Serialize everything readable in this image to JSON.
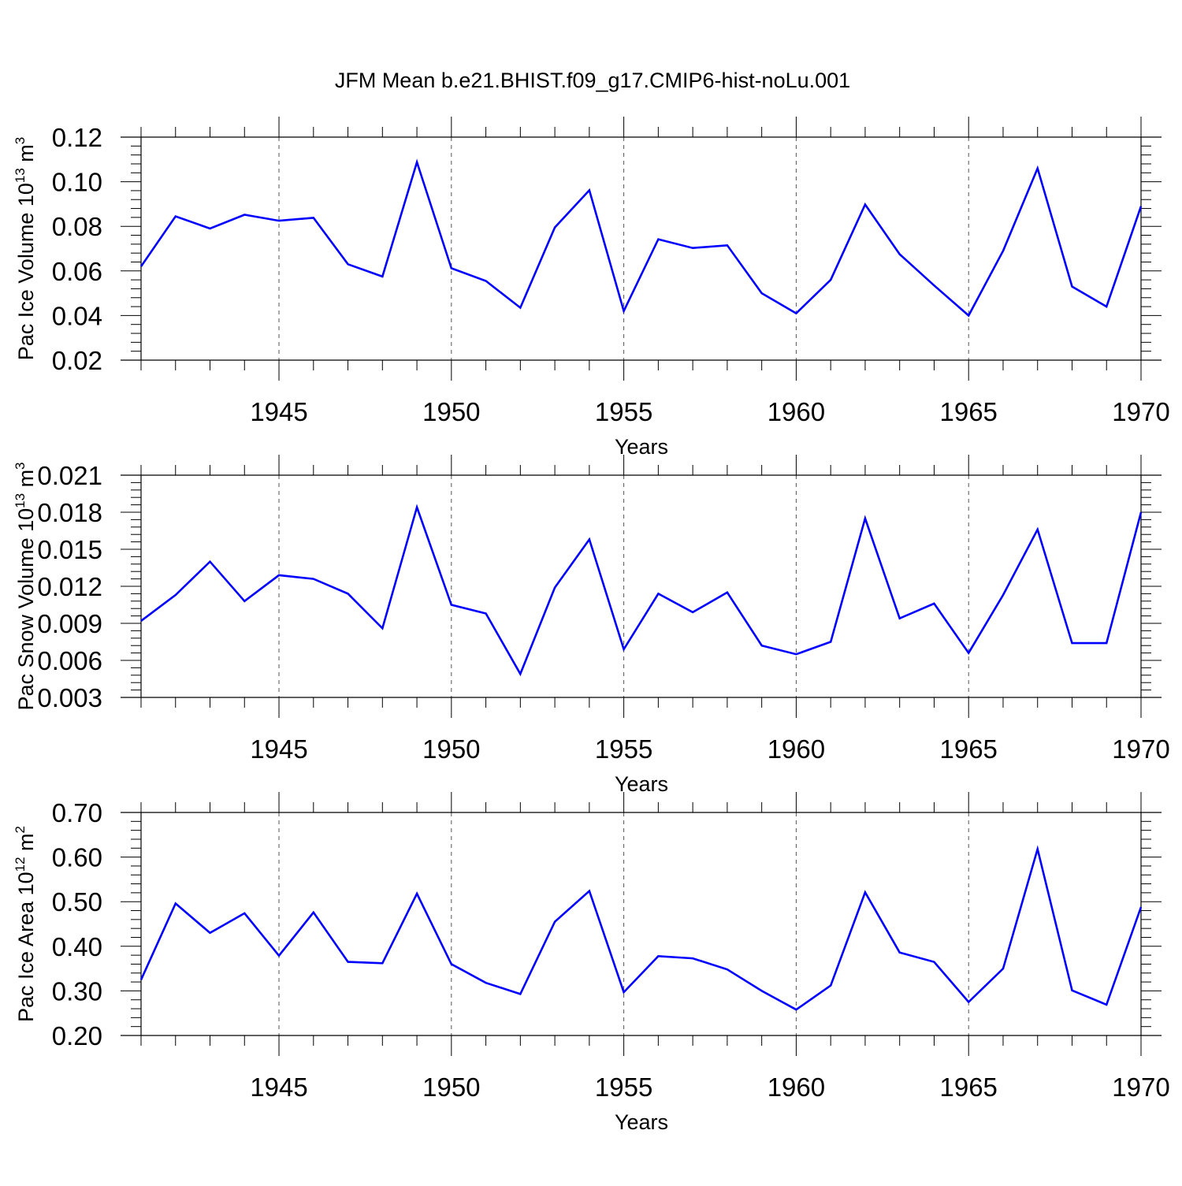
{
  "title": "JFM Mean b.e21.BHIST.f09_g17.CMIP6-hist-noLu.001",
  "colors": {
    "line": "#0000ff",
    "axis": "#000000",
    "grid": "#555555"
  },
  "chart_data": [
    {
      "type": "line",
      "ylabel": {
        "text": "Pac Ice Volume 10",
        "exp": "13",
        "unit": " m",
        "unit_exp": "3"
      },
      "xlabel": "Years",
      "xlim": [
        1941,
        1970
      ],
      "ylim": [
        0.02,
        0.12
      ],
      "xticks": [
        1945,
        1950,
        1955,
        1960,
        1965,
        1970
      ],
      "yticks": [
        0.02,
        0.04,
        0.06,
        0.08,
        0.1,
        0.12
      ],
      "ytick_labels": [
        "0.02",
        "0.04",
        "0.06",
        "0.08",
        "0.10",
        "0.12"
      ],
      "grid": "vertical dashed at major x ticks",
      "x": [
        1941,
        1942,
        1943,
        1944,
        1945,
        1946,
        1947,
        1948,
        1949,
        1950,
        1951,
        1952,
        1953,
        1954,
        1955,
        1956,
        1957,
        1958,
        1959,
        1960,
        1961,
        1962,
        1963,
        1964,
        1965,
        1966,
        1967,
        1968,
        1969,
        1970
      ],
      "y": [
        0.062,
        0.0845,
        0.079,
        0.0852,
        0.0825,
        0.0838,
        0.063,
        0.0575,
        0.1088,
        0.0612,
        0.0555,
        0.0435,
        0.0795,
        0.0962,
        0.042,
        0.0742,
        0.0703,
        0.0715,
        0.05,
        0.041,
        0.056,
        0.0898,
        0.0675,
        0.0535,
        0.04,
        0.069,
        0.106,
        0.053,
        0.044,
        0.089
      ]
    },
    {
      "type": "line",
      "ylabel": {
        "text": "Pac Snow Volume 10",
        "exp": "13",
        "unit": " m",
        "unit_exp": "3"
      },
      "xlabel": "Years",
      "xlim": [
        1941,
        1970
      ],
      "ylim": [
        0.003,
        0.021
      ],
      "xticks": [
        1945,
        1950,
        1955,
        1960,
        1965,
        1970
      ],
      "yticks": [
        0.003,
        0.006,
        0.009,
        0.012,
        0.015,
        0.018,
        0.021
      ],
      "ytick_labels": [
        "0.003",
        "0.006",
        "0.009",
        "0.012",
        "0.015",
        "0.018",
        "0.021"
      ],
      "grid": "vertical dashed at major x ticks",
      "x": [
        1941,
        1942,
        1943,
        1944,
        1945,
        1946,
        1947,
        1948,
        1949,
        1950,
        1951,
        1952,
        1953,
        1954,
        1955,
        1956,
        1957,
        1958,
        1959,
        1960,
        1961,
        1962,
        1963,
        1964,
        1965,
        1966,
        1967,
        1968,
        1969,
        1970
      ],
      "y": [
        0.0092,
        0.0113,
        0.014,
        0.0108,
        0.0129,
        0.0126,
        0.0114,
        0.0086,
        0.0184,
        0.0105,
        0.0098,
        0.0049,
        0.0119,
        0.0158,
        0.0069,
        0.0114,
        0.0099,
        0.0115,
        0.0072,
        0.0065,
        0.0075,
        0.0175,
        0.0094,
        0.0106,
        0.0066,
        0.0113,
        0.0166,
        0.0074,
        0.0074,
        0.018
      ]
    },
    {
      "type": "line",
      "ylabel": {
        "text": "Pac Ice Area 10",
        "exp": "12",
        "unit": " m",
        "unit_exp": "2"
      },
      "xlabel": "Years",
      "xlim": [
        1941,
        1970
      ],
      "ylim": [
        0.2,
        0.7
      ],
      "xticks": [
        1945,
        1950,
        1955,
        1960,
        1965,
        1970
      ],
      "yticks": [
        0.2,
        0.3,
        0.4,
        0.5,
        0.6,
        0.7
      ],
      "ytick_labels": [
        "0.20",
        "0.30",
        "0.40",
        "0.50",
        "0.60",
        "0.70"
      ],
      "grid": "vertical dashed at major x ticks",
      "x": [
        1941,
        1942,
        1943,
        1944,
        1945,
        1946,
        1947,
        1948,
        1949,
        1950,
        1951,
        1952,
        1953,
        1954,
        1955,
        1956,
        1957,
        1958,
        1959,
        1960,
        1961,
        1962,
        1963,
        1964,
        1965,
        1966,
        1967,
        1968,
        1969,
        1970
      ],
      "y": [
        0.325,
        0.496,
        0.43,
        0.474,
        0.379,
        0.476,
        0.365,
        0.362,
        0.518,
        0.36,
        0.318,
        0.293,
        0.455,
        0.524,
        0.297,
        0.378,
        0.373,
        0.348,
        0.3,
        0.258,
        0.312,
        0.521,
        0.386,
        0.365,
        0.275,
        0.35,
        0.618,
        0.301,
        0.269,
        0.488
      ]
    }
  ]
}
